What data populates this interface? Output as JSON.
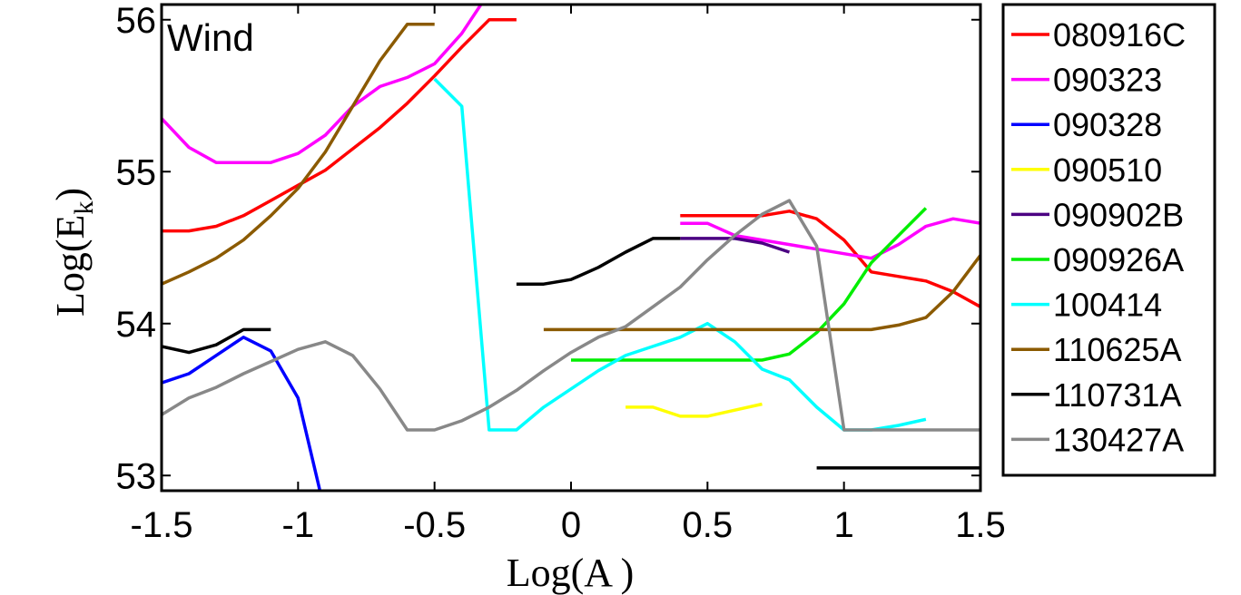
{
  "chart_data": {
    "type": "line",
    "annotation": "Wind",
    "xlabel": "Log(A )",
    "ylabel": "Log(E_k)",
    "ylabel_main": "Log(E",
    "ylabel_sub": "k",
    "ylabel_close": ")",
    "xlim": [
      -1.5,
      1.5
    ],
    "ylim": [
      52.9,
      56.1
    ],
    "xticks": [
      -1.5,
      -1,
      -0.5,
      0,
      0.5,
      1,
      1.5
    ],
    "xtick_labels": [
      "-1.5",
      "-1",
      "-0.5",
      "0",
      "0.5",
      "1",
      "1.5"
    ],
    "yticks": [
      53,
      54,
      55,
      56
    ],
    "ytick_labels": [
      "53",
      "54",
      "55",
      "56"
    ],
    "series": [
      {
        "name": "080916C",
        "color": "#ff0000",
        "segments": [
          [
            [
              -1.5,
              54.61
            ],
            [
              -1.4,
              54.61
            ],
            [
              -1.3,
              54.64
            ],
            [
              -1.2,
              54.71
            ],
            [
              -1.1,
              54.81
            ],
            [
              -1.0,
              54.91
            ],
            [
              -0.9,
              55.01
            ],
            [
              -0.8,
              55.15
            ],
            [
              -0.7,
              55.29
            ],
            [
              -0.6,
              55.45
            ],
            [
              -0.5,
              55.63
            ],
            [
              -0.4,
              55.82
            ],
            [
              -0.3,
              56.0
            ],
            [
              -0.2,
              56.0
            ]
          ],
          [
            [
              0.4,
              54.71
            ],
            [
              0.5,
              54.71
            ],
            [
              0.6,
              54.71
            ],
            [
              0.7,
              54.71
            ],
            [
              0.8,
              54.74
            ],
            [
              0.9,
              54.69
            ],
            [
              1.0,
              54.55
            ],
            [
              1.1,
              54.34
            ],
            [
              1.2,
              54.31
            ],
            [
              1.3,
              54.28
            ],
            [
              1.4,
              54.21
            ],
            [
              1.5,
              54.11
            ]
          ]
        ]
      },
      {
        "name": "090323",
        "color": "#ff00ff",
        "segments": [
          [
            [
              -1.5,
              55.35
            ],
            [
              -1.4,
              55.16
            ],
            [
              -1.3,
              55.06
            ],
            [
              -1.2,
              55.06
            ],
            [
              -1.1,
              55.06
            ],
            [
              -1.0,
              55.12
            ],
            [
              -0.9,
              55.24
            ],
            [
              -0.8,
              55.43
            ],
            [
              -0.7,
              55.56
            ],
            [
              -0.6,
              55.62
            ],
            [
              -0.5,
              55.71
            ],
            [
              -0.4,
              55.91
            ],
            [
              -0.33,
              56.1
            ]
          ],
          [
            [
              0.4,
              54.66
            ],
            [
              0.5,
              54.66
            ],
            [
              0.6,
              54.58
            ],
            [
              0.7,
              54.55
            ],
            [
              0.8,
              54.52
            ],
            [
              0.9,
              54.49
            ],
            [
              1.0,
              54.46
            ],
            [
              1.1,
              54.43
            ],
            [
              1.2,
              54.52
            ],
            [
              1.3,
              54.64
            ],
            [
              1.4,
              54.69
            ],
            [
              1.5,
              54.66
            ]
          ]
        ]
      },
      {
        "name": "090328",
        "color": "#0000ff",
        "segments": [
          [
            [
              -1.5,
              53.61
            ],
            [
              -1.4,
              53.67
            ],
            [
              -1.3,
              53.79
            ],
            [
              -1.2,
              53.91
            ],
            [
              -1.1,
              53.82
            ],
            [
              -1.0,
              53.51
            ],
            [
              -0.92,
              52.9
            ]
          ]
        ]
      },
      {
        "name": "090510",
        "color": "#ffff00",
        "segments": [
          [
            [
              0.2,
              53.45
            ],
            [
              0.3,
              53.45
            ],
            [
              0.4,
              53.39
            ],
            [
              0.5,
              53.39
            ],
            [
              0.6,
              53.43
            ],
            [
              0.7,
              53.47
            ]
          ]
        ]
      },
      {
        "name": "090902B",
        "color": "#4b0082",
        "segments": [
          [
            [
              0.4,
              54.56
            ],
            [
              0.5,
              54.56
            ],
            [
              0.6,
              54.56
            ],
            [
              0.7,
              54.53
            ],
            [
              0.8,
              54.47
            ]
          ]
        ]
      },
      {
        "name": "090926A",
        "color": "#00ee00",
        "segments": [
          [
            [
              0.0,
              53.76
            ],
            [
              0.1,
              53.76
            ],
            [
              0.2,
              53.76
            ],
            [
              0.3,
              53.76
            ],
            [
              0.4,
              53.76
            ],
            [
              0.5,
              53.76
            ],
            [
              0.6,
              53.76
            ],
            [
              0.7,
              53.76
            ],
            [
              0.8,
              53.8
            ],
            [
              0.9,
              53.94
            ],
            [
              1.0,
              54.13
            ],
            [
              1.1,
              54.4
            ],
            [
              1.2,
              54.58
            ],
            [
              1.3,
              54.76
            ]
          ]
        ]
      },
      {
        "name": "100414",
        "color": "#00ffff",
        "segments": [
          [
            [
              -0.5,
              55.61
            ],
            [
              -0.4,
              55.43
            ],
            [
              -0.3,
              53.3
            ],
            [
              -0.2,
              53.3
            ],
            [
              -0.1,
              53.45
            ],
            [
              0.0,
              53.57
            ],
            [
              0.1,
              53.69
            ],
            [
              0.2,
              53.79
            ],
            [
              0.3,
              53.85
            ],
            [
              0.4,
              53.91
            ],
            [
              0.5,
              54.0
            ],
            [
              0.6,
              53.88
            ],
            [
              0.7,
              53.7
            ],
            [
              0.8,
              53.63
            ],
            [
              0.9,
              53.45
            ],
            [
              1.0,
              53.3
            ],
            [
              1.1,
              53.3
            ],
            [
              1.2,
              53.33
            ],
            [
              1.3,
              53.37
            ]
          ]
        ]
      },
      {
        "name": "110625A",
        "color": "#8b5a00",
        "segments": [
          [
            [
              -1.5,
              54.26
            ],
            [
              -1.4,
              54.34
            ],
            [
              -1.3,
              54.43
            ],
            [
              -1.2,
              54.55
            ],
            [
              -1.1,
              54.71
            ],
            [
              -1.0,
              54.89
            ],
            [
              -0.9,
              55.13
            ],
            [
              -0.8,
              55.43
            ],
            [
              -0.7,
              55.73
            ],
            [
              -0.6,
              55.97
            ],
            [
              -0.5,
              55.97
            ]
          ],
          [
            [
              -0.1,
              53.96
            ],
            [
              0.0,
              53.96
            ],
            [
              0.1,
              53.96
            ],
            [
              0.2,
              53.96
            ],
            [
              0.3,
              53.96
            ],
            [
              0.4,
              53.96
            ],
            [
              0.5,
              53.96
            ],
            [
              0.6,
              53.96
            ],
            [
              0.7,
              53.96
            ],
            [
              0.8,
              53.96
            ],
            [
              0.9,
              53.96
            ],
            [
              1.0,
              53.96
            ],
            [
              1.1,
              53.96
            ],
            [
              1.2,
              53.99
            ],
            [
              1.3,
              54.04
            ],
            [
              1.4,
              54.21
            ],
            [
              1.5,
              54.45
            ]
          ]
        ]
      },
      {
        "name": "110731A",
        "color": "#000000",
        "segments": [
          [
            [
              -1.5,
              53.85
            ],
            [
              -1.4,
              53.81
            ],
            [
              -1.3,
              53.86
            ],
            [
              -1.2,
              53.96
            ],
            [
              -1.1,
              53.96
            ]
          ],
          [
            [
              -0.2,
              54.26
            ],
            [
              -0.1,
              54.26
            ],
            [
              0.0,
              54.29
            ],
            [
              0.1,
              54.37
            ],
            [
              0.2,
              54.47
            ],
            [
              0.3,
              54.56
            ],
            [
              0.4,
              54.56
            ]
          ],
          [
            [
              0.9,
              53.05
            ],
            [
              1.0,
              53.05
            ],
            [
              1.1,
              53.05
            ],
            [
              1.2,
              53.05
            ],
            [
              1.3,
              53.05
            ],
            [
              1.4,
              53.05
            ],
            [
              1.5,
              53.05
            ]
          ]
        ]
      },
      {
        "name": "130427A",
        "color": "#888888",
        "segments": [
          [
            [
              -1.5,
              53.4
            ],
            [
              -1.4,
              53.51
            ],
            [
              -1.3,
              53.58
            ],
            [
              -1.2,
              53.67
            ],
            [
              -1.1,
              53.75
            ],
            [
              -1.0,
              53.83
            ],
            [
              -0.9,
              53.88
            ],
            [
              -0.8,
              53.79
            ],
            [
              -0.7,
              53.57
            ],
            [
              -0.6,
              53.3
            ],
            [
              -0.5,
              53.3
            ],
            [
              -0.4,
              53.36
            ],
            [
              -0.3,
              53.45
            ],
            [
              -0.2,
              53.56
            ],
            [
              -0.1,
              53.69
            ],
            [
              0.0,
              53.81
            ],
            [
              0.1,
              53.91
            ],
            [
              0.2,
              53.98
            ],
            [
              0.3,
              54.11
            ],
            [
              0.4,
              54.24
            ],
            [
              0.5,
              54.42
            ],
            [
              0.6,
              54.58
            ],
            [
              0.7,
              54.72
            ],
            [
              0.8,
              54.81
            ],
            [
              0.9,
              54.51
            ],
            [
              1.0,
              53.3
            ],
            [
              1.1,
              53.3
            ],
            [
              1.2,
              53.3
            ],
            [
              1.3,
              53.3
            ],
            [
              1.4,
              53.3
            ],
            [
              1.5,
              53.3
            ]
          ]
        ]
      }
    ]
  }
}
